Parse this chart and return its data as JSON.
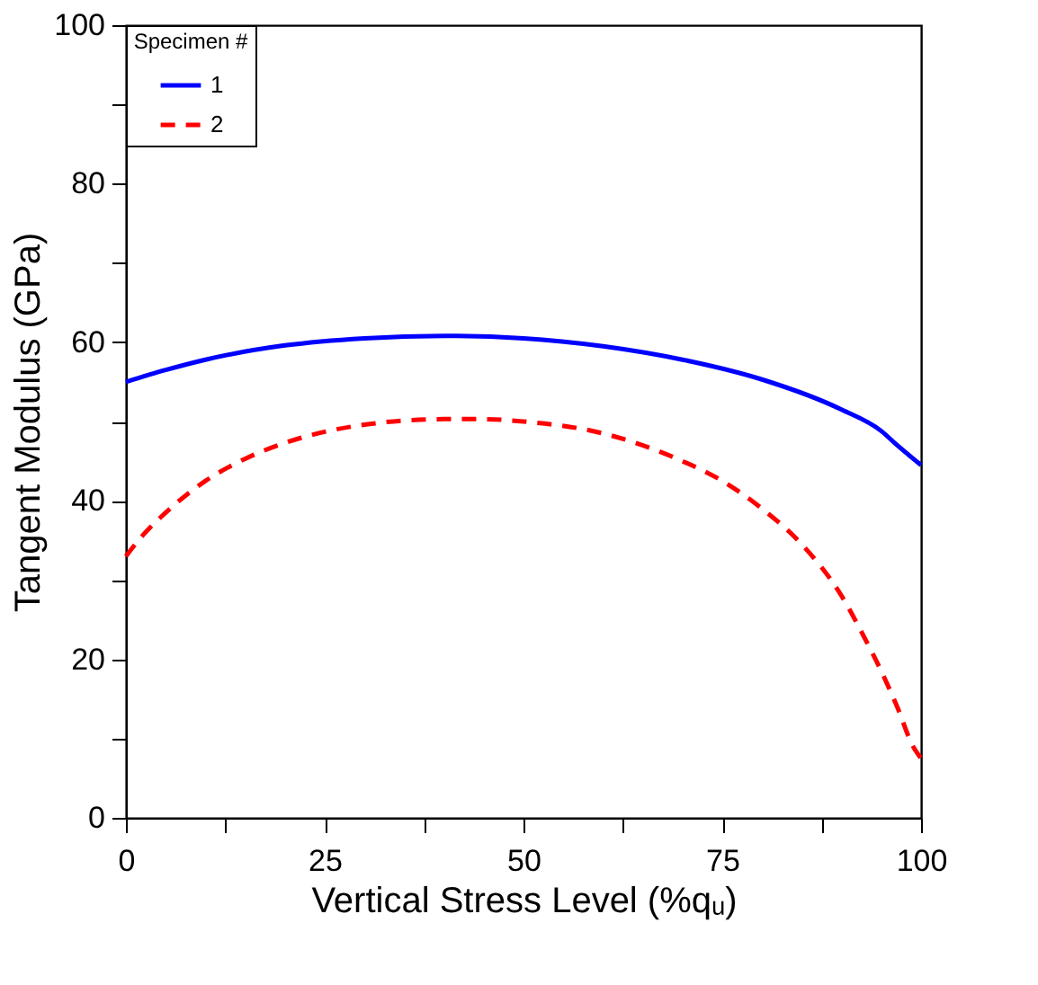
{
  "chart_data": {
    "type": "line",
    "xlabel": "Vertical Stress Level (%qᵤ)",
    "ylabel": "Tangent Modulus (GPa)",
    "legend_title": "Specimen #",
    "xlim": [
      0,
      100
    ],
    "ylim": [
      0,
      100
    ],
    "xticks": [
      0,
      {
        "value": 12.5,
        "label": null
      },
      25,
      {
        "value": 37.5,
        "label": null
      },
      50,
      {
        "value": 62.5,
        "label": null
      },
      75,
      {
        "value": 87.5,
        "label": null
      },
      100
    ],
    "yticks": [
      0,
      {
        "value": 10,
        "label": null
      },
      20,
      {
        "value": 30,
        "label": null
      },
      40,
      {
        "value": 50,
        "label": null
      },
      60,
      {
        "value": 70,
        "label": null
      },
      80,
      {
        "value": 90,
        "label": null
      },
      100
    ],
    "grid": false,
    "legend": "top left",
    "marker": "none",
    "series": [
      {
        "name": "1",
        "color": "#0000ff",
        "line_style": "solid",
        "x": [
          0,
          5,
          10,
          20,
          30,
          40,
          50,
          60,
          70,
          80,
          90,
          95,
          97,
          100
        ],
        "values": [
          55,
          56.5,
          57.8,
          59.6,
          60.5,
          60.8,
          60.5,
          59.5,
          57.8,
          55.3,
          51.5,
          48.8,
          47,
          44.5
        ]
      },
      {
        "name": "2",
        "color": "#ff0000",
        "line_style": "dashed",
        "x": [
          0,
          2,
          5,
          10,
          15,
          20,
          30,
          40,
          45,
          50,
          60,
          70,
          75,
          80,
          85,
          90,
          93,
          95,
          97,
          99,
          100
        ],
        "values": [
          33,
          35.5,
          38.5,
          42.5,
          45.3,
          47.3,
          49.6,
          50.3,
          50.3,
          50,
          48.5,
          45,
          42.5,
          39,
          34.5,
          28,
          22.5,
          18.5,
          14,
          9,
          7.5
        ]
      }
    ]
  }
}
